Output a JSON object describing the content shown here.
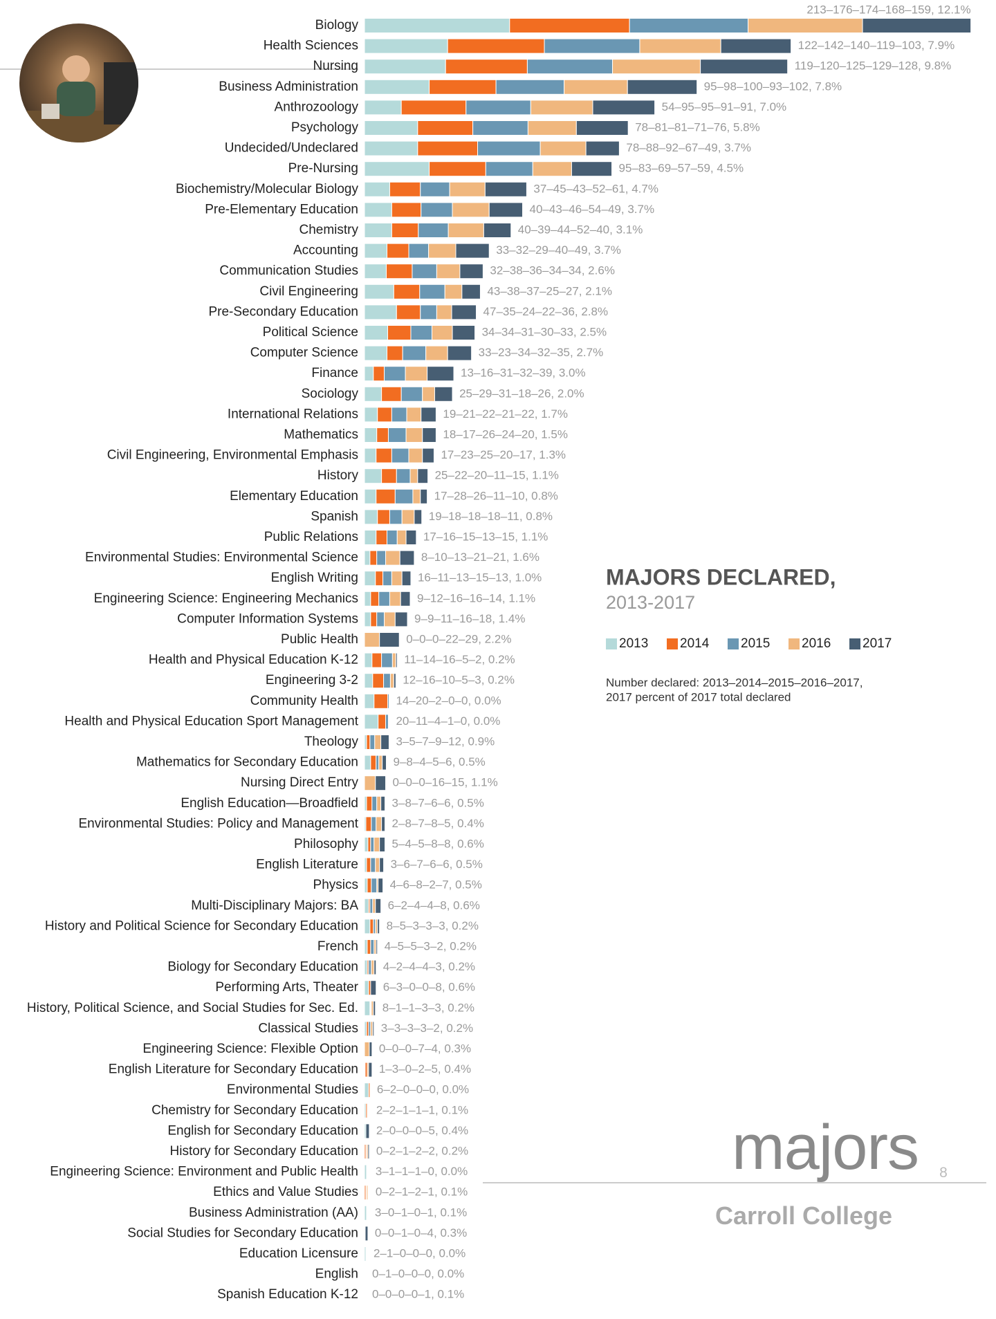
{
  "chart_data": {
    "type": "stacked-bar",
    "title": "MAJORS DECLARED,",
    "subtitle": "2013-2017",
    "note": [
      "Number declared: 2013–2014–2015–2016–2017,",
      "2017 percent of 2017 total declared"
    ],
    "categories": [
      "Biology",
      "Health Sciences",
      "Nursing",
      "Business Administration",
      "Anthrozoology",
      "Psychology",
      "Undecided/Undeclared",
      "Pre-Nursing",
      "Biochemistry/Molecular Biology",
      "Pre-Elementary Education",
      "Chemistry",
      "Accounting",
      "Communication Studies",
      "Civil Engineering",
      "Pre-Secondary Education",
      "Political Science",
      "Computer Science",
      "Finance",
      "Sociology",
      "International Relations",
      "Mathematics",
      "Civil Engineering, Environmental Emphasis",
      "History",
      "Elementary Education",
      "Spanish",
      "Public Relations",
      "Environmental Studies: Environmental Science",
      "English Writing",
      "Engineering Science: Engineering Mechanics",
      "Computer Information Systems",
      "Public Health",
      "Health and Physical Education K-12",
      "Engineering 3-2",
      "Community Health",
      "Health and Physical Education Sport Management",
      "Theology",
      "Mathematics for Secondary Education",
      "Nursing Direct Entry",
      "English Education—Broadfield",
      "Environmental Studies: Policy and Management",
      "Philosophy",
      "English Literature",
      "Physics",
      "Multi-Disciplinary Majors: BA",
      "History and Political Science for Secondary Education",
      "French",
      "Biology for Secondary Education",
      "Performing Arts, Theater",
      "History, Political Science, and Social Studies for Sec. Ed.",
      "Classical Studies",
      "Engineering Science: Flexible Option",
      "English Literature for Secondary Education",
      "Environmental Studies",
      "Chemistry for Secondary Education",
      "English for Secondary Education",
      "History for Secondary Education",
      "Engineering Science: Environment and Public Health",
      "Ethics and Value Studies",
      "Business Administration (AA)",
      "Social Studies for Secondary Education",
      "Education Licensure",
      "English",
      "Spanish Education K-12"
    ],
    "series": [
      {
        "name": "2013",
        "color": "#b5dada",
        "values": [
          213,
          122,
          119,
          95,
          54,
          78,
          78,
          95,
          37,
          40,
          40,
          33,
          32,
          43,
          47,
          34,
          33,
          13,
          25,
          19,
          18,
          17,
          25,
          17,
          19,
          17,
          8,
          16,
          9,
          9,
          0,
          11,
          12,
          14,
          20,
          3,
          9,
          0,
          3,
          2,
          5,
          3,
          4,
          6,
          8,
          4,
          4,
          6,
          8,
          3,
          0,
          1,
          6,
          2,
          2,
          0,
          3,
          0,
          3,
          0,
          2,
          0,
          0
        ]
      },
      {
        "name": "2014",
        "color": "#f26d21",
        "values": [
          176,
          142,
          120,
          98,
          95,
          81,
          88,
          83,
          45,
          43,
          39,
          32,
          38,
          38,
          35,
          34,
          23,
          16,
          29,
          21,
          17,
          23,
          22,
          28,
          18,
          16,
          10,
          11,
          12,
          9,
          0,
          14,
          16,
          20,
          11,
          5,
          8,
          0,
          8,
          8,
          4,
          6,
          6,
          2,
          5,
          5,
          2,
          3,
          1,
          3,
          0,
          3,
          2,
          2,
          0,
          2,
          1,
          2,
          0,
          0,
          1,
          1,
          0
        ]
      },
      {
        "name": "2015",
        "color": "#6a97b3",
        "values": [
          174,
          140,
          125,
          100,
          95,
          81,
          92,
          69,
          43,
          46,
          44,
          29,
          36,
          37,
          24,
          31,
          34,
          31,
          31,
          22,
          26,
          25,
          20,
          26,
          18,
          15,
          13,
          13,
          16,
          11,
          0,
          16,
          10,
          2,
          4,
          7,
          4,
          0,
          7,
          7,
          5,
          7,
          8,
          4,
          3,
          5,
          4,
          0,
          1,
          3,
          0,
          0,
          0,
          1,
          0,
          1,
          1,
          1,
          1,
          1,
          0,
          0,
          0
        ]
      },
      {
        "name": "2016",
        "color": "#f0b77e",
        "values": [
          168,
          119,
          129,
          93,
          91,
          71,
          67,
          57,
          52,
          54,
          52,
          40,
          34,
          25,
          22,
          30,
          32,
          32,
          18,
          21,
          24,
          20,
          11,
          11,
          18,
          13,
          21,
          15,
          16,
          16,
          22,
          5,
          5,
          0,
          1,
          9,
          5,
          16,
          6,
          8,
          8,
          6,
          2,
          4,
          3,
          3,
          4,
          0,
          3,
          3,
          7,
          2,
          0,
          1,
          0,
          2,
          1,
          2,
          0,
          0,
          0,
          0,
          0
        ]
      },
      {
        "name": "2017",
        "color": "#475e73",
        "values": [
          159,
          103,
          128,
          102,
          91,
          76,
          49,
          59,
          61,
          49,
          40,
          49,
          34,
          27,
          36,
          33,
          35,
          39,
          26,
          22,
          20,
          17,
          15,
          10,
          11,
          15,
          21,
          13,
          14,
          18,
          29,
          2,
          3,
          0,
          0,
          12,
          6,
          15,
          6,
          5,
          8,
          6,
          7,
          8,
          3,
          2,
          3,
          8,
          3,
          2,
          4,
          5,
          0,
          1,
          5,
          2,
          0,
          1,
          1,
          4,
          0,
          0,
          1
        ]
      }
    ],
    "value_labels": [
      "213–176–174–168–159, 12.1%",
      "122–142–140–119–103, 7.9%",
      "119–120–125–129–128, 9.8%",
      "95–98–100–93–102, 7.8%",
      "54–95–95–91–91, 7.0%",
      "78–81–81–71–76, 5.8%",
      "78–88–92–67–49, 3.7%",
      "95–83–69–57–59, 4.5%",
      "37–45–43–52–61, 4.7%",
      "40–43–46–54–49, 3.7%",
      "40–39–44–52–40, 3.1%",
      "33–32–29–40–49, 3.7%",
      "32–38–36–34–34, 2.6%",
      "43–38–37–25–27, 2.1%",
      "47–35–24–22–36, 2.8%",
      "34–34–31–30–33, 2.5%",
      "33–23–34–32–35, 2.7%",
      "13–16–31–32–39, 3.0%",
      "25–29–31–18–26, 2.0%",
      "19–21–22–21–22, 1.7%",
      "18–17–26–24–20, 1.5%",
      "17–23–25–20–17, 1.3%",
      "25–22–20–11–15, 1.1%",
      "17–28–26–11–10, 0.8%",
      "19–18–18–18–11, 0.8%",
      "17–16–15–13–15, 1.1%",
      "8–10–13–21–21, 1.6%",
      "16–11–13–15–13, 1.0%",
      "9–12–16–16–14, 1.1%",
      "9–9–11–16–18, 1.4%",
      "0–0–0–22–29, 2.2%",
      "11–14–16–5–2, 0.2%",
      "12–16–10–5–3, 0.2%",
      "14–20–2–0–0, 0.0%",
      "20–11–4–1–0, 0.0%",
      "3–5–7–9–12, 0.9%",
      "9–8–4–5–6, 0.5%",
      "0–0–0–16–15, 1.1%",
      "3–8–7–6–6, 0.5%",
      "2–8–7–8–5, 0.4%",
      "5–4–5–8–8, 0.6%",
      "3–6–7–6–6, 0.5%",
      "4–6–8–2–7, 0.5%",
      "6–2–4–4–8, 0.6%",
      "8–5–3–3–3, 0.2%",
      "4–5–5–3–2, 0.2%",
      "4–2–4–4–3, 0.2%",
      "6–3–0–0–8, 0.6%",
      "8–1–1–3–3, 0.2%",
      "3–3–3–3–2, 0.2%",
      "0–0–0–7–4, 0.3%",
      "1–3–0–2–5, 0.4%",
      "6–2–0–0–0, 0.0%",
      "2–2–1–1–1, 0.1%",
      "2–0–0–0–5, 0.4%",
      "0–2–1–2–2, 0.2%",
      "3–1–1–1–0, 0.0%",
      "0–2–1–2–1, 0.1%",
      "3–0–1–0–1, 0.1%",
      "0–0–1–0–4, 0.3%",
      "2–1–0–0–0, 0.0%",
      "0–1–0–0–0, 0.0%",
      "0–0–0–0–1, 0.1%"
    ]
  },
  "footer": {
    "section": "majors",
    "page": 8,
    "college": "Carroll College"
  }
}
